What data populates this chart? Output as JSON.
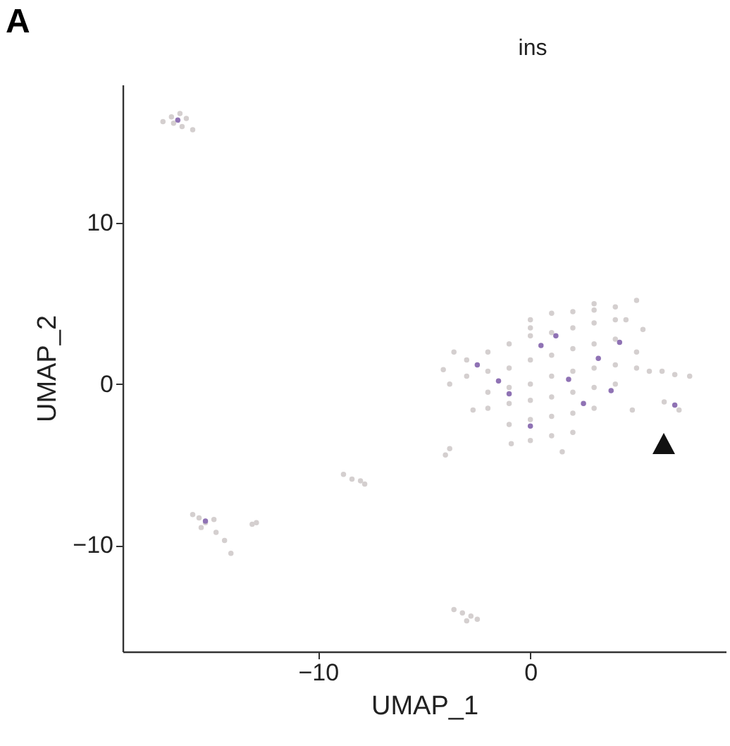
{
  "chart_data": {
    "type": "scatter",
    "title": "ins",
    "xlabel": "UMAP_1",
    "ylabel": "UMAP_2",
    "annotations": [
      "A"
    ],
    "xlim": [
      -19.2,
      9.2
    ],
    "ylim": [
      -16.6,
      18.6
    ],
    "xticks": [
      -10,
      0
    ],
    "yticks": [
      -10,
      0,
      10
    ],
    "grid": false,
    "marker": "circle",
    "series": [
      {
        "color": "#d4cfcf",
        "x": [
          -17.3,
          -16.9,
          -16.5,
          -16.2,
          -15.9,
          -16.8,
          -16.4,
          -8.8,
          -8.4,
          -8.0,
          -7.8,
          -15.9,
          -15.6,
          -15.3,
          -14.9,
          -15.5,
          -14.8,
          -14.4,
          -14.1,
          -12.9,
          -13.1,
          -3.6,
          -3.2,
          -2.8,
          -2.5,
          -3.0,
          -4.0,
          -3.8,
          -4.1,
          -3.8,
          -3.6,
          -2.7,
          -0.9,
          1.5,
          4.8,
          5.6,
          5.3,
          5.0,
          3.0,
          0.0,
          -3.0,
          -2.0,
          -1.0,
          0.0,
          1.0,
          2.0,
          3.0,
          4.0,
          -3.0,
          -2.0,
          -1.0,
          0.0,
          1.0,
          2.0,
          3.0,
          4.0,
          5.0,
          -2.0,
          -1.0,
          0.0,
          1.0,
          2.0,
          3.0,
          4.0,
          5.0,
          -2.0,
          -1.0,
          0.0,
          1.0,
          2.0,
          3.0,
          4.0,
          -1.0,
          0.0,
          1.0,
          2.0,
          3.0,
          0.0,
          1.0,
          2.0,
          0.0,
          1.0,
          2.0,
          3.0,
          4.0,
          4.5,
          6.2,
          6.8,
          7.5,
          6.3,
          7.0
        ],
        "values": [
          16.3,
          16.6,
          16.8,
          16.5,
          15.8,
          16.2,
          16.0,
          -5.6,
          -5.9,
          -6.0,
          -6.2,
          -8.1,
          -8.3,
          -8.6,
          -8.4,
          -8.9,
          -9.2,
          -9.7,
          -10.5,
          -8.6,
          -8.7,
          -14.0,
          -14.2,
          -14.4,
          -14.6,
          -14.7,
          -4.4,
          -4.0,
          0.9,
          0.0,
          2.0,
          -1.6,
          -3.7,
          -4.2,
          -1.6,
          0.8,
          3.4,
          5.2,
          4.6,
          3.5,
          1.5,
          2.0,
          2.5,
          3.0,
          3.2,
          3.5,
          3.8,
          4.0,
          0.5,
          0.8,
          1.0,
          1.5,
          1.8,
          2.2,
          2.5,
          2.8,
          2.0,
          -0.5,
          -0.2,
          0.0,
          0.5,
          0.8,
          1.0,
          1.2,
          1.0,
          -1.5,
          -1.2,
          -1.0,
          -0.8,
          -0.5,
          -0.2,
          0.0,
          -2.5,
          -2.2,
          -2.0,
          -1.8,
          -1.5,
          -3.5,
          -3.2,
          -3.0,
          4.0,
          4.4,
          4.5,
          5.0,
          4.8,
          4.0,
          0.8,
          0.6,
          0.5,
          -1.1,
          -1.6
        ]
      },
      {
        "color": "#8f72b4",
        "x": [
          -2.5,
          -1.0,
          0.5,
          1.8,
          3.2,
          4.2,
          2.5,
          0.0,
          -1.5,
          1.2,
          3.8,
          6.8,
          -16.6,
          -15.3
        ],
        "values": [
          1.2,
          -0.6,
          2.4,
          0.3,
          1.6,
          2.6,
          -1.2,
          -2.6,
          0.2,
          3.0,
          -0.4,
          -1.3,
          16.4,
          -8.5
        ]
      }
    ]
  }
}
